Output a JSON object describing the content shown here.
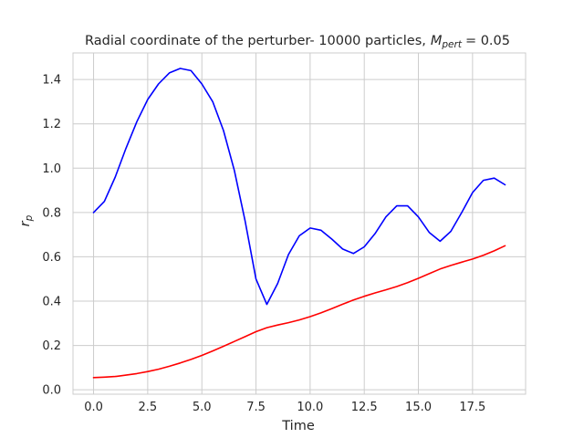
{
  "chart_data": {
    "type": "line",
    "title": {
      "prefix": "Radial coordinate of the perturber- 10000 particles,",
      "math_symbol": "M",
      "math_subscript": "pert",
      "suffix": "= 0.05"
    },
    "xlabel": "Time",
    "ylabel": {
      "symbol": "r",
      "subscript": "p"
    },
    "xlim": [
      -0.95,
      19.95
    ],
    "ylim": [
      -0.02,
      1.52
    ],
    "xticks": [
      0.0,
      2.5,
      5.0,
      7.5,
      10.0,
      12.5,
      15.0,
      17.5
    ],
    "xtick_labels": [
      "0.0",
      "2.5",
      "5.0",
      "7.5",
      "10.0",
      "12.5",
      "15.0",
      "17.5"
    ],
    "yticks": [
      0.0,
      0.2,
      0.4,
      0.6,
      0.8,
      1.0,
      1.2,
      1.4
    ],
    "ytick_labels": [
      "0.0",
      "0.2",
      "0.4",
      "0.6",
      "0.8",
      "1.0",
      "1.2",
      "1.4"
    ],
    "grid": true,
    "series": [
      {
        "color": "#0000ff",
        "x": [
          0.0,
          0.5,
          1.0,
          1.5,
          2.0,
          2.5,
          3.0,
          3.5,
          4.0,
          4.5,
          5.0,
          5.5,
          6.0,
          6.5,
          7.0,
          7.5,
          8.0,
          8.5,
          9.0,
          9.5,
          10.0,
          10.5,
          11.0,
          11.5,
          12.0,
          12.5,
          13.0,
          13.5,
          14.0,
          14.5,
          15.0,
          15.5,
          16.0,
          16.5,
          17.0,
          17.5,
          18.0,
          18.5,
          19.0
        ],
        "y": [
          0.8,
          0.85,
          0.96,
          1.09,
          1.21,
          1.31,
          1.38,
          1.43,
          1.45,
          1.44,
          1.38,
          1.3,
          1.17,
          0.99,
          0.76,
          0.5,
          0.385,
          0.48,
          0.61,
          0.695,
          0.73,
          0.72,
          0.68,
          0.635,
          0.615,
          0.645,
          0.705,
          0.78,
          0.83,
          0.83,
          0.78,
          0.71,
          0.67,
          0.715,
          0.8,
          0.89,
          0.945,
          0.955,
          0.925
        ]
      },
      {
        "color": "#ff0000",
        "x": [
          0.0,
          0.5,
          1.0,
          1.5,
          2.0,
          2.5,
          3.0,
          3.5,
          4.0,
          4.5,
          5.0,
          5.5,
          6.0,
          6.5,
          7.0,
          7.5,
          8.0,
          8.5,
          9.0,
          9.5,
          10.0,
          10.5,
          11.0,
          11.5,
          12.0,
          12.5,
          13.0,
          13.5,
          14.0,
          14.5,
          15.0,
          15.5,
          16.0,
          16.5,
          17.0,
          17.5,
          18.0,
          18.5,
          19.0
        ],
        "y": [
          0.055,
          0.057,
          0.06,
          0.066,
          0.073,
          0.082,
          0.093,
          0.106,
          0.121,
          0.137,
          0.155,
          0.175,
          0.196,
          0.218,
          0.24,
          0.262,
          0.28,
          0.292,
          0.303,
          0.315,
          0.33,
          0.347,
          0.366,
          0.386,
          0.405,
          0.422,
          0.437,
          0.451,
          0.466,
          0.483,
          0.503,
          0.524,
          0.545,
          0.561,
          0.576,
          0.59,
          0.607,
          0.627,
          0.65
        ]
      }
    ]
  }
}
